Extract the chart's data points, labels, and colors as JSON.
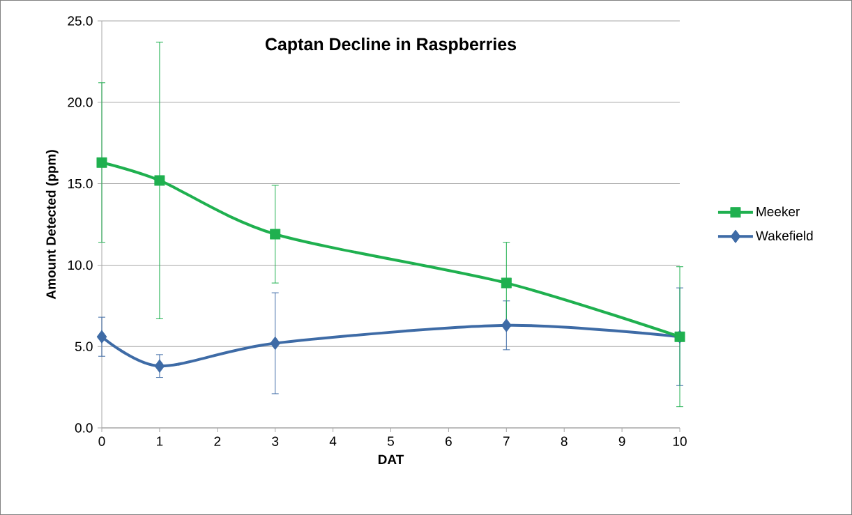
{
  "chart_data": {
    "type": "line",
    "title": "Captan Decline in Raspberries",
    "xlabel": "DAT",
    "ylabel": "Amount Detected (ppm)",
    "x": [
      0,
      1,
      3,
      7,
      10
    ],
    "series": [
      {
        "name": "Meeker",
        "color": "#1fb04f",
        "marker": "square",
        "values": [
          16.3,
          15.2,
          11.9,
          8.9,
          5.6
        ],
        "errors": [
          4.9,
          8.5,
          3.0,
          2.5,
          4.3
        ]
      },
      {
        "name": "Wakefield",
        "color": "#3e6ba6",
        "marker": "diamond",
        "values": [
          5.6,
          3.8,
          5.2,
          6.3,
          5.6
        ],
        "errors": [
          1.2,
          0.7,
          3.1,
          1.5,
          3.0
        ]
      }
    ],
    "xlim": [
      0,
      10
    ],
    "xticks": [
      0,
      1,
      2,
      3,
      4,
      5,
      6,
      7,
      8,
      9,
      10
    ],
    "ylim": [
      0,
      25
    ],
    "yticks": [
      {
        "value": 0,
        "label": "0.0"
      },
      {
        "value": 5,
        "label": "5.0"
      },
      {
        "value": 10,
        "label": "10.0"
      },
      {
        "value": 15,
        "label": "15.0"
      },
      {
        "value": 20,
        "label": "20.0"
      },
      {
        "value": 25,
        "label": "25.0"
      }
    ],
    "grid": "y",
    "legend": "right"
  }
}
